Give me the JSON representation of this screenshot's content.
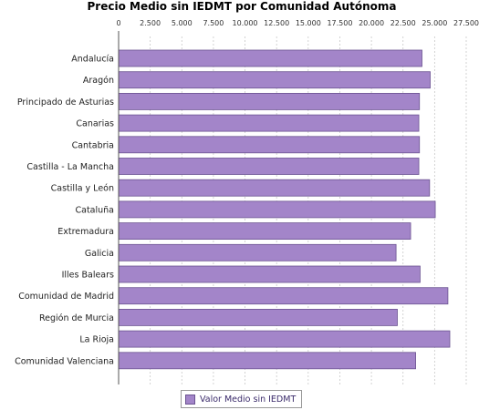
{
  "chart_data": {
    "type": "bar",
    "orientation": "horizontal",
    "title": "Precio Medio sin IEDMT por Comunidad Autónoma",
    "categories": [
      "Andalucía",
      "Aragón",
      "Principado de Asturias",
      "Canarias",
      "Cantabria",
      "Castilla - La Mancha",
      "Castilla y León",
      "Cataluña",
      "Extremadura",
      "Galicia",
      "Illes Balears",
      "Comunidad de Madrid",
      "Región de Murcia",
      "La Rioja",
      "Comunidad Valenciana"
    ],
    "series": [
      {
        "name": "Valor Medio sin IEDMT",
        "values": [
          24000,
          24650,
          23800,
          23750,
          23800,
          23750,
          24600,
          25050,
          23100,
          21950,
          23850,
          26050,
          22050,
          26200,
          23500
        ]
      }
    ],
    "xlim": [
      0,
      27500
    ],
    "xticks": [
      "0",
      "2.500",
      "5.000",
      "7.500",
      "10.000",
      "12.500",
      "15.000",
      "17.500",
      "20.000",
      "22.500",
      "25.000",
      "27.500"
    ],
    "xtick_values": [
      0,
      2500,
      5000,
      7500,
      10000,
      12500,
      15000,
      17500,
      20000,
      22500,
      25000,
      27500
    ],
    "grid": true,
    "legend": "bottom",
    "color": "#a385c9"
  }
}
